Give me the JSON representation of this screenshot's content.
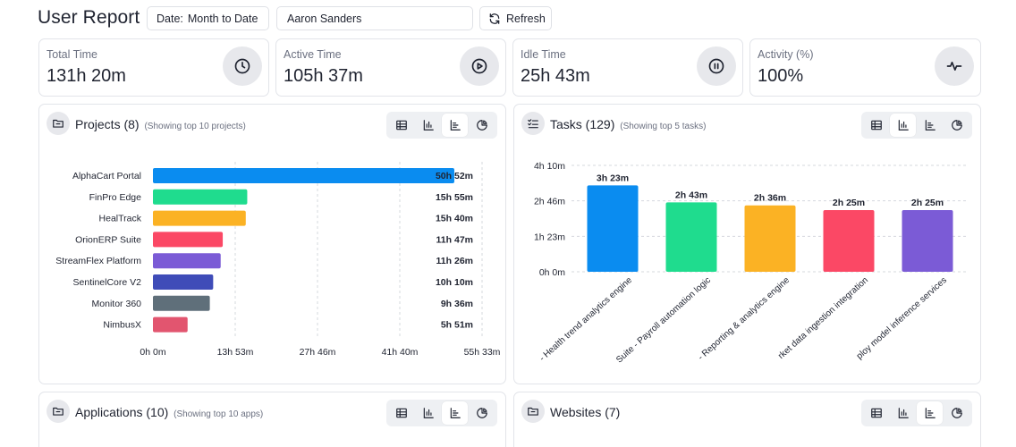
{
  "header": {
    "title": "User Report",
    "date_label": "Date:",
    "date_value": "Month to Date",
    "user_value": "Aaron Sanders",
    "refresh_label": "Refresh"
  },
  "stats": [
    {
      "label": "Total Time",
      "value": "131h 20m",
      "icon": "clock-icon"
    },
    {
      "label": "Active Time",
      "value": "105h 37m",
      "icon": "play-icon"
    },
    {
      "label": "Idle Time",
      "value": "25h 43m",
      "icon": "pause-icon"
    },
    {
      "label": "Activity (%)",
      "value": "100%",
      "icon": "activity-icon"
    }
  ],
  "projects_panel": {
    "title": "Projects (8)",
    "subtitle": "(Showing top 10 projects)",
    "active_view": "bar-horizontal"
  },
  "tasks_panel": {
    "title": "Tasks (129)",
    "subtitle": "(Showing top 5 tasks)",
    "active_view": "bar-vertical"
  },
  "applications_panel": {
    "title": "Applications (10)",
    "subtitle": "(Showing top 10 apps)",
    "active_view": "bar-horizontal"
  },
  "websites_panel": {
    "title": "Websites (7)",
    "subtitle": "",
    "active_view": "bar-horizontal"
  },
  "chart_data": [
    {
      "type": "bar",
      "orientation": "horizontal",
      "categories": [
        "AlphaCart Portal",
        "FinPro Edge",
        "HealTrack",
        "OrionERP Suite",
        "StreamFlex Platform",
        "SentinelCore V2",
        "Monitor 360",
        "NimbusX"
      ],
      "values_minutes": [
        3052,
        955,
        940,
        707,
        686,
        610,
        576,
        351
      ],
      "data_labels": [
        "50h 52m",
        "15h 55m",
        "15h 40m",
        "11h 47m",
        "11h 26m",
        "10h 10m",
        "9h 36m",
        "5h 51m"
      ],
      "colors": [
        "#0a8cf0",
        "#1fdc8e",
        "#fbb224",
        "#fb4865",
        "#7b5bd6",
        "#3f4cb8",
        "#5f6f7a",
        "#e2556f"
      ],
      "x_ticks": [
        "0h 0m",
        "13h 53m",
        "27h 46m",
        "41h 40m",
        "55h 33m"
      ],
      "xlim_minutes": [
        0,
        3333
      ],
      "grid": true
    },
    {
      "type": "bar",
      "orientation": "vertical",
      "categories": [
        "- Health trend analytics engine",
        "Suite - Payroll automation logic",
        "- Reporting & analytics engine",
        "rket data ingestion integration",
        "ploy model inference services"
      ],
      "values_minutes": [
        203,
        163,
        156,
        145,
        145
      ],
      "data_labels": [
        "3h 23m",
        "2h 43m",
        "2h 36m",
        "2h 25m",
        "2h 25m"
      ],
      "colors": [
        "#0a8cf0",
        "#1fdc8e",
        "#fbb224",
        "#fb4865",
        "#7b5bd6"
      ],
      "y_ticks": [
        "0h 0m",
        "1h 23m",
        "2h 46m",
        "4h 10m"
      ],
      "ylim_minutes": [
        0,
        250
      ],
      "grid": true
    }
  ]
}
